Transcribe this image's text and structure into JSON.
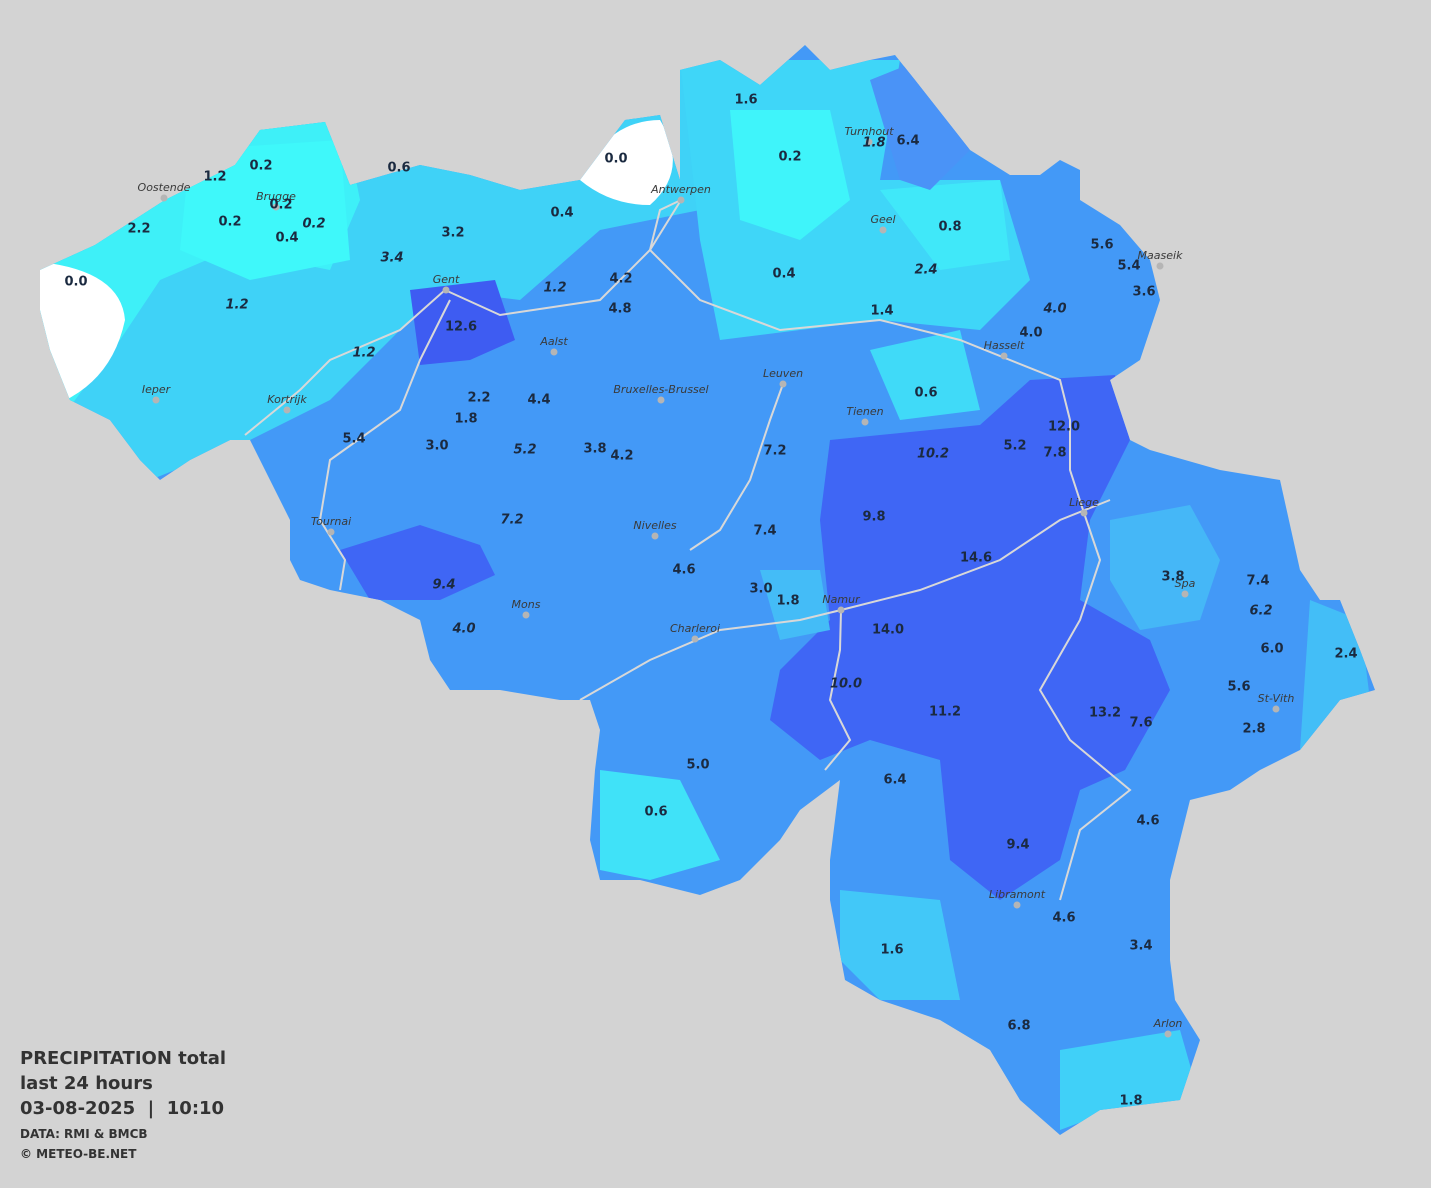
{
  "title": {
    "lines": [
      "PRECIPITATION total",
      "last 24 hours",
      "03-08-2025  |  10:10"
    ]
  },
  "credits": [
    "DATA: RMI & BMCB",
    "© METEO-BE.NET"
  ],
  "cities": [
    "Oostende",
    "Brugge",
    "Antwerpen",
    "Turnhout",
    "Geel",
    "Maaseik",
    "Gent",
    "Aalst",
    "Hasselt",
    "Ieper",
    "Kortrijk",
    "Bruxelles-Brussel",
    "Leuven",
    "Tienen",
    "Liege",
    "Tournai",
    "Nivelles",
    "Spa",
    "Mons",
    "Namur",
    "Charleroi",
    "St-Vith",
    "Libramont",
    "Arlon"
  ],
  "stations": [
    {
      "value": "1.6",
      "italic": false
    },
    {
      "value": "0.2",
      "italic": false
    },
    {
      "value": "1.8",
      "italic": true
    },
    {
      "value": "6.4",
      "italic": false
    },
    {
      "value": "0.0",
      "italic": false
    },
    {
      "value": "0.2",
      "italic": false
    },
    {
      "value": "1.2",
      "italic": false
    },
    {
      "value": "0.6",
      "italic": false
    },
    {
      "value": "0.2",
      "italic": false
    },
    {
      "value": "0.2",
      "italic": false
    },
    {
      "value": "0.4",
      "italic": false
    },
    {
      "value": "0.2",
      "italic": true
    },
    {
      "value": "2.2",
      "italic": false
    },
    {
      "value": "3.2",
      "italic": false
    },
    {
      "value": "0.4",
      "italic": false
    },
    {
      "value": "0.8",
      "italic": false
    },
    {
      "value": "5.6",
      "italic": false
    },
    {
      "value": "5.4",
      "italic": false
    },
    {
      "value": "3.6",
      "italic": false
    },
    {
      "value": "0.0",
      "italic": false
    },
    {
      "value": "3.4",
      "italic": true
    },
    {
      "value": "4.2",
      "italic": false
    },
    {
      "value": "0.4",
      "italic": false
    },
    {
      "value": "2.4",
      "italic": true
    },
    {
      "value": "1.2",
      "italic": true
    },
    {
      "value": "4.8",
      "italic": false
    },
    {
      "value": "1.4",
      "italic": false
    },
    {
      "value": "4.0",
      "italic": true
    },
    {
      "value": "4.0",
      "italic": false
    },
    {
      "value": "1.2",
      "italic": true
    },
    {
      "value": "12.6",
      "italic": false
    },
    {
      "value": "1.2",
      "italic": true
    },
    {
      "value": "0.6",
      "italic": false
    },
    {
      "value": "2.2",
      "italic": false
    },
    {
      "value": "4.4",
      "italic": false
    },
    {
      "value": "1.8",
      "italic": false
    },
    {
      "value": "12.0",
      "italic": false
    },
    {
      "value": "5.4",
      "italic": false
    },
    {
      "value": "3.0",
      "italic": false
    },
    {
      "value": "5.2",
      "italic": true
    },
    {
      "value": "3.8",
      "italic": false
    },
    {
      "value": "4.2",
      "italic": false
    },
    {
      "value": "7.2",
      "italic": false
    },
    {
      "value": "10.2",
      "italic": true
    },
    {
      "value": "5.2",
      "italic": false
    },
    {
      "value": "7.8",
      "italic": false
    },
    {
      "value": "9.8",
      "italic": false
    },
    {
      "value": "7.2",
      "italic": true
    },
    {
      "value": "7.4",
      "italic": false
    },
    {
      "value": "14.6",
      "italic": false
    },
    {
      "value": "4.6",
      "italic": false
    },
    {
      "value": "3.8",
      "italic": false
    },
    {
      "value": "7.4",
      "italic": false
    },
    {
      "value": "9.4",
      "italic": true
    },
    {
      "value": "3.0",
      "italic": false
    },
    {
      "value": "1.8",
      "italic": false
    },
    {
      "value": "6.2",
      "italic": true
    },
    {
      "value": "4.0",
      "italic": true
    },
    {
      "value": "14.0",
      "italic": false
    },
    {
      "value": "6.0",
      "italic": false
    },
    {
      "value": "2.4",
      "italic": false
    },
    {
      "value": "10.0",
      "italic": true
    },
    {
      "value": "11.2",
      "italic": false
    },
    {
      "value": "13.2",
      "italic": false
    },
    {
      "value": "5.6",
      "italic": false
    },
    {
      "value": "7.6",
      "italic": false
    },
    {
      "value": "2.8",
      "italic": false
    },
    {
      "value": "5.0",
      "italic": false
    },
    {
      "value": "6.4",
      "italic": false
    },
    {
      "value": "0.6",
      "italic": false
    },
    {
      "value": "4.6",
      "italic": false
    },
    {
      "value": "9.4",
      "italic": false
    },
    {
      "value": "4.6",
      "italic": false
    },
    {
      "value": "1.6",
      "italic": false
    },
    {
      "value": "3.4",
      "italic": false
    },
    {
      "value": "6.8",
      "italic": false
    },
    {
      "value": "1.8",
      "italic": false
    }
  ]
}
